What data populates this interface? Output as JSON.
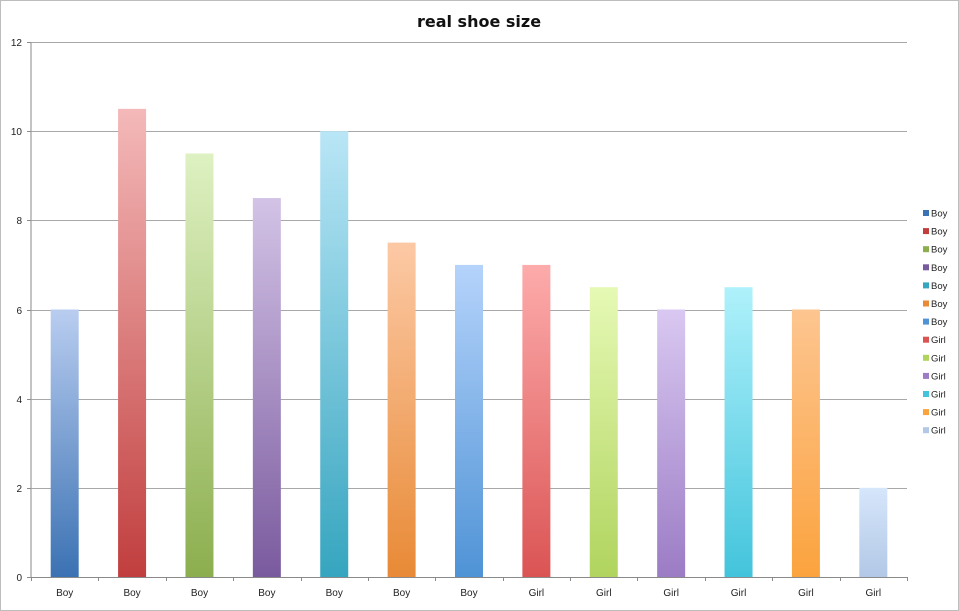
{
  "chart_data": {
    "type": "bar",
    "title": "real shoe size",
    "xlabel": "",
    "ylabel": "",
    "ylim": [
      0,
      12
    ],
    "yticks": [
      0,
      2,
      4,
      6,
      8,
      10,
      12
    ],
    "grid": true,
    "legend_position": "right",
    "categories": [
      "Boy",
      "Boy",
      "Boy",
      "Boy",
      "Boy",
      "Boy",
      "Boy",
      "Girl",
      "Girl",
      "Girl",
      "Girl",
      "Girl",
      "Girl"
    ],
    "values": [
      6,
      10.5,
      9.5,
      8.5,
      10,
      7.5,
      7,
      7,
      6.5,
      6,
      6.5,
      6,
      2
    ],
    "legend": [
      "Boy",
      "Boy",
      "Boy",
      "Boy",
      "Boy",
      "Boy",
      "Boy",
      "Girl",
      "Girl",
      "Girl",
      "Girl",
      "Girl",
      "Girl"
    ],
    "colors": [
      {
        "top": "#b9cdf0",
        "bottom": "#3b72b3"
      },
      {
        "top": "#f4b9b9",
        "bottom": "#c13e3e"
      },
      {
        "top": "#def1c2",
        "bottom": "#8cae4e"
      },
      {
        "top": "#d3c3e6",
        "bottom": "#7a5a9e"
      },
      {
        "top": "#b9e6f6",
        "bottom": "#36a5bf"
      },
      {
        "top": "#fcc9a5",
        "bottom": "#e88a36"
      },
      {
        "top": "#b5d3fb",
        "bottom": "#4f93d6"
      },
      {
        "top": "#fdabab",
        "bottom": "#db5454"
      },
      {
        "top": "#e6f9b5",
        "bottom": "#b0d45e"
      },
      {
        "top": "#d9c8f1",
        "bottom": "#9c7cc5"
      },
      {
        "top": "#aff1fb",
        "bottom": "#43c4dc"
      },
      {
        "top": "#fdc590",
        "bottom": "#fba33e"
      },
      {
        "top": "#d6e6fb",
        "bottom": "#b2c8e6"
      }
    ]
  }
}
